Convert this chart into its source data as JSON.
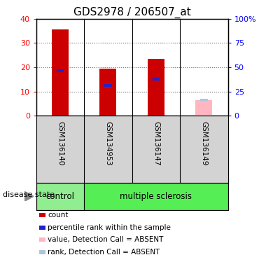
{
  "title": "GDS2978 / 206507_at",
  "samples": [
    "GSM136140",
    "GSM134953",
    "GSM136147",
    "GSM136149"
  ],
  "count_values": [
    35.5,
    19.5,
    23.5,
    0
  ],
  "rank_values": [
    18.5,
    12.5,
    15.0,
    0
  ],
  "absent_value": [
    0,
    0,
    0,
    6.5
  ],
  "absent_rank": [
    0,
    0,
    0,
    6.5
  ],
  "bar_width": 0.35,
  "ylim_left": [
    0,
    40
  ],
  "ylim_right": [
    0,
    100
  ],
  "yticks_left": [
    0,
    10,
    20,
    30,
    40
  ],
  "ytick_labels_left": [
    "0",
    "10",
    "20",
    "30",
    "40"
  ],
  "ytick_labels_right": [
    "0",
    "25",
    "50",
    "75",
    "100%"
  ],
  "count_color": "#CC0000",
  "rank_color": "#2222CC",
  "absent_value_color": "#FFB6C1",
  "absent_rank_color": "#B0C4DE",
  "grid_color": "#666666",
  "sample_bg_color": "#D3D3D3",
  "control_color": "#90EE90",
  "ms_color": "#55EE55",
  "legend_items": [
    {
      "color": "#CC0000",
      "label": "count"
    },
    {
      "color": "#2222CC",
      "label": "percentile rank within the sample"
    },
    {
      "color": "#FFB6C1",
      "label": "value, Detection Call = ABSENT"
    },
    {
      "color": "#B0C4DE",
      "label": "rank, Detection Call = ABSENT"
    }
  ]
}
